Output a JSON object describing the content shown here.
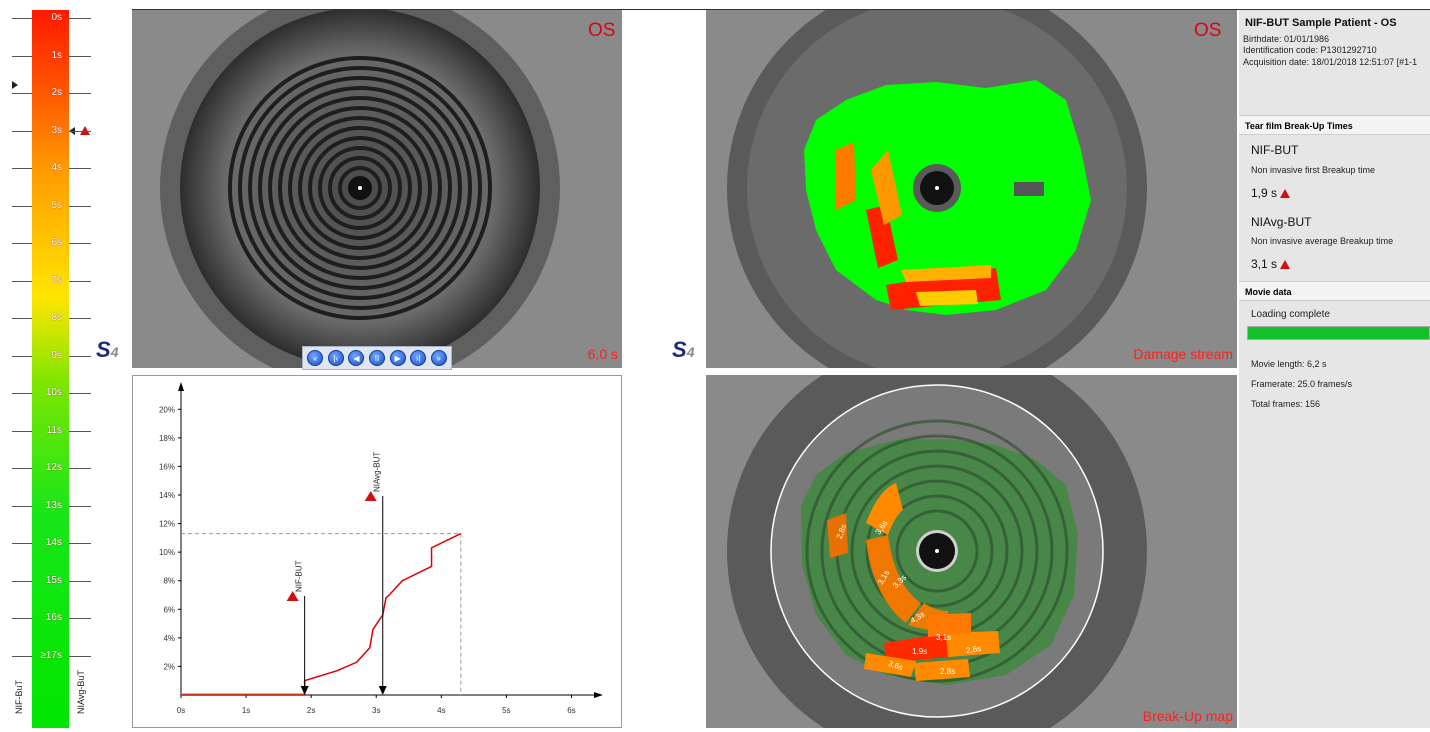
{
  "scale": {
    "ticks": [
      "0s",
      "1s",
      "2s",
      "3s",
      "4s",
      "5s",
      "6s",
      "7s",
      "8s",
      "9s",
      "10s",
      "11s",
      "12s",
      "13s",
      "14s",
      "15s",
      "16s",
      "≥17s"
    ],
    "left_label": "NIF-BuT",
    "right_label": "NIAvg-BuT"
  },
  "top_left": {
    "side": "OS",
    "time": "6,0 s"
  },
  "top_right": {
    "side": "OS",
    "caption": "Damage stream"
  },
  "bottom_right": {
    "caption": "Break-Up map"
  },
  "player": {
    "buttons": [
      "first-icon",
      "prev-icon",
      "rewind-icon",
      "pause-icon",
      "play-icon",
      "next-icon",
      "last-icon"
    ]
  },
  "breakup_labels": [
    "2,8s",
    "3,6s",
    "3,1s",
    "3,3s",
    "4,3s",
    "3,1s",
    "1,9s",
    "2,6s",
    "3,6s",
    "2,8s"
  ],
  "chart_data": {
    "type": "line",
    "x_ticks": [
      "0s",
      "1s",
      "2s",
      "3s",
      "4s",
      "5s",
      "6s"
    ],
    "y_ticks": [
      "2%",
      "4%",
      "6%",
      "8%",
      "10%",
      "12%",
      "14%",
      "16%",
      "18%",
      "20%"
    ],
    "xlim": [
      0,
      6.3
    ],
    "ylim": [
      0,
      21
    ],
    "series": [
      {
        "values_x": [
          0,
          1.9,
          1.9,
          2.4,
          2.7,
          2.9,
          2.95,
          3.1,
          3.15,
          3.2,
          3.4,
          3.85,
          3.85,
          4.3
        ],
        "values_y": [
          0,
          0,
          1,
          1.7,
          2.3,
          3.3,
          4.6,
          5.6,
          6.8,
          7.0,
          8.0,
          9.0,
          10.3,
          11.3
        ]
      }
    ],
    "markers": [
      {
        "label": "NIF-BUT",
        "x": 1.9
      },
      {
        "label": "NIAvg-BUT",
        "x": 3.1
      }
    ],
    "max_point": {
      "x": 4.3,
      "y": 11.3
    }
  },
  "info": {
    "patient": "NIF-BUT Sample Patient - OS",
    "birthdate": "Birthdate: 01/01/1986",
    "id_code": "Identification code: P1301292710",
    "acq_date": "Acquisition date: 18/01/2018 12:51:07 [#1-1",
    "section1": "Tear film Break-Up Times",
    "nifbut_title": "NIF-BUT",
    "nifbut_desc": "Non invasive first Breakup time",
    "nifbut_value": "1,9 s",
    "niavg_title": "NIAvg-BUT",
    "niavg_desc": "Non invasive average Breakup time",
    "niavg_value": "3,1 s",
    "section2": "Movie data",
    "loading": "Loading complete",
    "loading_progress": 1.0,
    "movie_length": "Movie length: 6,2 s",
    "framerate": "Framerate: 25.0 frames/s",
    "total_frames": "Total frames: 156"
  },
  "colors": {
    "accent_red": "#e0001a",
    "warning": "#d01010",
    "progress": "#12c02a",
    "plot_line": "#e00000"
  }
}
